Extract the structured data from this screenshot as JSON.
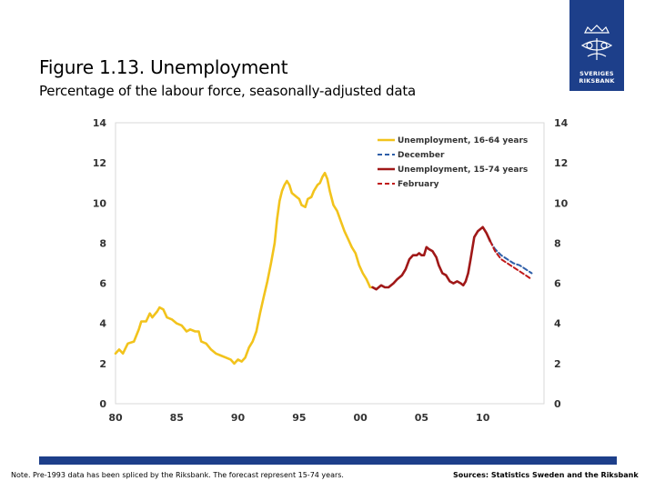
{
  "header": {
    "title": "Figure 1.13. Unemployment",
    "subtitle": "Percentage of the labour force, seasonally-adjusted data"
  },
  "logo": {
    "line1": "SVERIGES",
    "line2": "RIKSBANK"
  },
  "footer": {
    "note": "Note. Pre-1993 data has been spliced by the Riksbank. The forecast represent 15-74 years.",
    "sources": "Sources: Statistics Sweden and the Riksbank"
  },
  "colors": {
    "brand_blue": "#1d3f8a",
    "series_16_64": "#f2c31c",
    "december": "#2e5ea8",
    "series_15_74": "#a01818",
    "february": "#c01818"
  },
  "chart_data": {
    "type": "line",
    "xlim": [
      1980,
      2015
    ],
    "ylim": [
      0,
      14
    ],
    "y_ticks": [
      0,
      2,
      4,
      6,
      8,
      10,
      12,
      14
    ],
    "y_ticks_right": [
      0,
      2,
      4,
      6,
      8,
      10,
      12,
      14
    ],
    "x_ticks": [
      {
        "value": 1980,
        "label": "80"
      },
      {
        "value": 1985,
        "label": "85"
      },
      {
        "value": 1990,
        "label": "90"
      },
      {
        "value": 1995,
        "label": "95"
      },
      {
        "value": 2000,
        "label": "00"
      },
      {
        "value": 2005,
        "label": "05"
      },
      {
        "value": 2010,
        "label": "10"
      }
    ],
    "grid": false,
    "legend_position": "top-right",
    "series": [
      {
        "name": "Unemployment, 16-64 years",
        "style": "solid",
        "color": "#f2c31c",
        "points": [
          [
            1980.0,
            2.5
          ],
          [
            1980.3,
            2.7
          ],
          [
            1980.6,
            2.5
          ],
          [
            1981.0,
            3.0
          ],
          [
            1981.5,
            3.1
          ],
          [
            1981.9,
            3.7
          ],
          [
            1982.1,
            4.1
          ],
          [
            1982.5,
            4.1
          ],
          [
            1982.8,
            4.5
          ],
          [
            1983.0,
            4.3
          ],
          [
            1983.4,
            4.6
          ],
          [
            1983.6,
            4.8
          ],
          [
            1983.9,
            4.7
          ],
          [
            1984.2,
            4.3
          ],
          [
            1984.6,
            4.2
          ],
          [
            1985.0,
            4.0
          ],
          [
            1985.4,
            3.9
          ],
          [
            1985.8,
            3.6
          ],
          [
            1986.1,
            3.7
          ],
          [
            1986.5,
            3.6
          ],
          [
            1986.8,
            3.6
          ],
          [
            1987.0,
            3.1
          ],
          [
            1987.4,
            3.0
          ],
          [
            1987.8,
            2.7
          ],
          [
            1988.2,
            2.5
          ],
          [
            1988.6,
            2.4
          ],
          [
            1989.0,
            2.3
          ],
          [
            1989.4,
            2.2
          ],
          [
            1989.7,
            2.0
          ],
          [
            1990.0,
            2.2
          ],
          [
            1990.3,
            2.1
          ],
          [
            1990.6,
            2.3
          ],
          [
            1990.9,
            2.8
          ],
          [
            1991.2,
            3.1
          ],
          [
            1991.5,
            3.6
          ],
          [
            1991.8,
            4.5
          ],
          [
            1992.1,
            5.3
          ],
          [
            1992.4,
            6.1
          ],
          [
            1992.7,
            7.0
          ],
          [
            1993.0,
            8.0
          ],
          [
            1993.2,
            9.2
          ],
          [
            1993.4,
            10.1
          ],
          [
            1993.6,
            10.6
          ],
          [
            1993.8,
            10.9
          ],
          [
            1994.0,
            11.1
          ],
          [
            1994.2,
            10.9
          ],
          [
            1994.4,
            10.5
          ],
          [
            1994.8,
            10.3
          ],
          [
            1995.0,
            10.2
          ],
          [
            1995.2,
            9.9
          ],
          [
            1995.5,
            9.8
          ],
          [
            1995.7,
            10.2
          ],
          [
            1996.0,
            10.3
          ],
          [
            1996.2,
            10.6
          ],
          [
            1996.5,
            10.9
          ],
          [
            1996.7,
            11.0
          ],
          [
            1996.9,
            11.3
          ],
          [
            1997.1,
            11.5
          ],
          [
            1997.3,
            11.2
          ],
          [
            1997.5,
            10.6
          ],
          [
            1997.8,
            9.9
          ],
          [
            1998.1,
            9.6
          ],
          [
            1998.4,
            9.1
          ],
          [
            1998.7,
            8.6
          ],
          [
            1999.0,
            8.2
          ],
          [
            1999.3,
            7.8
          ],
          [
            1999.6,
            7.5
          ],
          [
            1999.9,
            6.9
          ],
          [
            2000.2,
            6.5
          ],
          [
            2000.5,
            6.2
          ],
          [
            2000.8,
            5.8
          ],
          [
            2001.0,
            5.8
          ]
        ]
      },
      {
        "name": "December",
        "style": "dashed",
        "color": "#2e5ea8",
        "points": [
          [
            2010.6,
            8.1
          ],
          [
            2011.0,
            7.7
          ],
          [
            2011.5,
            7.4
          ],
          [
            2012.0,
            7.2
          ],
          [
            2012.5,
            7.0
          ],
          [
            2013.0,
            6.9
          ],
          [
            2013.5,
            6.7
          ],
          [
            2014.0,
            6.5
          ]
        ]
      },
      {
        "name": "Unemployment, 15-74 years",
        "style": "solid",
        "color": "#a01818",
        "points": [
          [
            2001.0,
            5.8
          ],
          [
            2001.3,
            5.7
          ],
          [
            2001.7,
            5.9
          ],
          [
            2002.0,
            5.8
          ],
          [
            2002.3,
            5.8
          ],
          [
            2002.7,
            6.0
          ],
          [
            2003.0,
            6.2
          ],
          [
            2003.4,
            6.4
          ],
          [
            2003.7,
            6.7
          ],
          [
            2004.0,
            7.2
          ],
          [
            2004.3,
            7.4
          ],
          [
            2004.6,
            7.4
          ],
          [
            2004.8,
            7.5
          ],
          [
            2005.0,
            7.4
          ],
          [
            2005.2,
            7.4
          ],
          [
            2005.4,
            7.8
          ],
          [
            2005.6,
            7.7
          ],
          [
            2005.9,
            7.6
          ],
          [
            2006.2,
            7.3
          ],
          [
            2006.4,
            6.9
          ],
          [
            2006.7,
            6.5
          ],
          [
            2007.0,
            6.4
          ],
          [
            2007.3,
            6.1
          ],
          [
            2007.6,
            6.0
          ],
          [
            2007.9,
            6.1
          ],
          [
            2008.2,
            6.0
          ],
          [
            2008.4,
            5.9
          ],
          [
            2008.6,
            6.1
          ],
          [
            2008.8,
            6.5
          ],
          [
            2009.0,
            7.2
          ],
          [
            2009.3,
            8.3
          ],
          [
            2009.6,
            8.6
          ],
          [
            2009.8,
            8.7
          ],
          [
            2010.0,
            8.8
          ],
          [
            2010.3,
            8.5
          ],
          [
            2010.6,
            8.1
          ]
        ]
      },
      {
        "name": "February",
        "style": "dashed",
        "color": "#c01818",
        "points": [
          [
            2010.6,
            8.1
          ],
          [
            2011.0,
            7.6
          ],
          [
            2011.5,
            7.2
          ],
          [
            2012.0,
            7.0
          ],
          [
            2012.5,
            6.8
          ],
          [
            2013.0,
            6.6
          ],
          [
            2013.5,
            6.4
          ],
          [
            2014.0,
            6.2
          ]
        ]
      }
    ]
  }
}
